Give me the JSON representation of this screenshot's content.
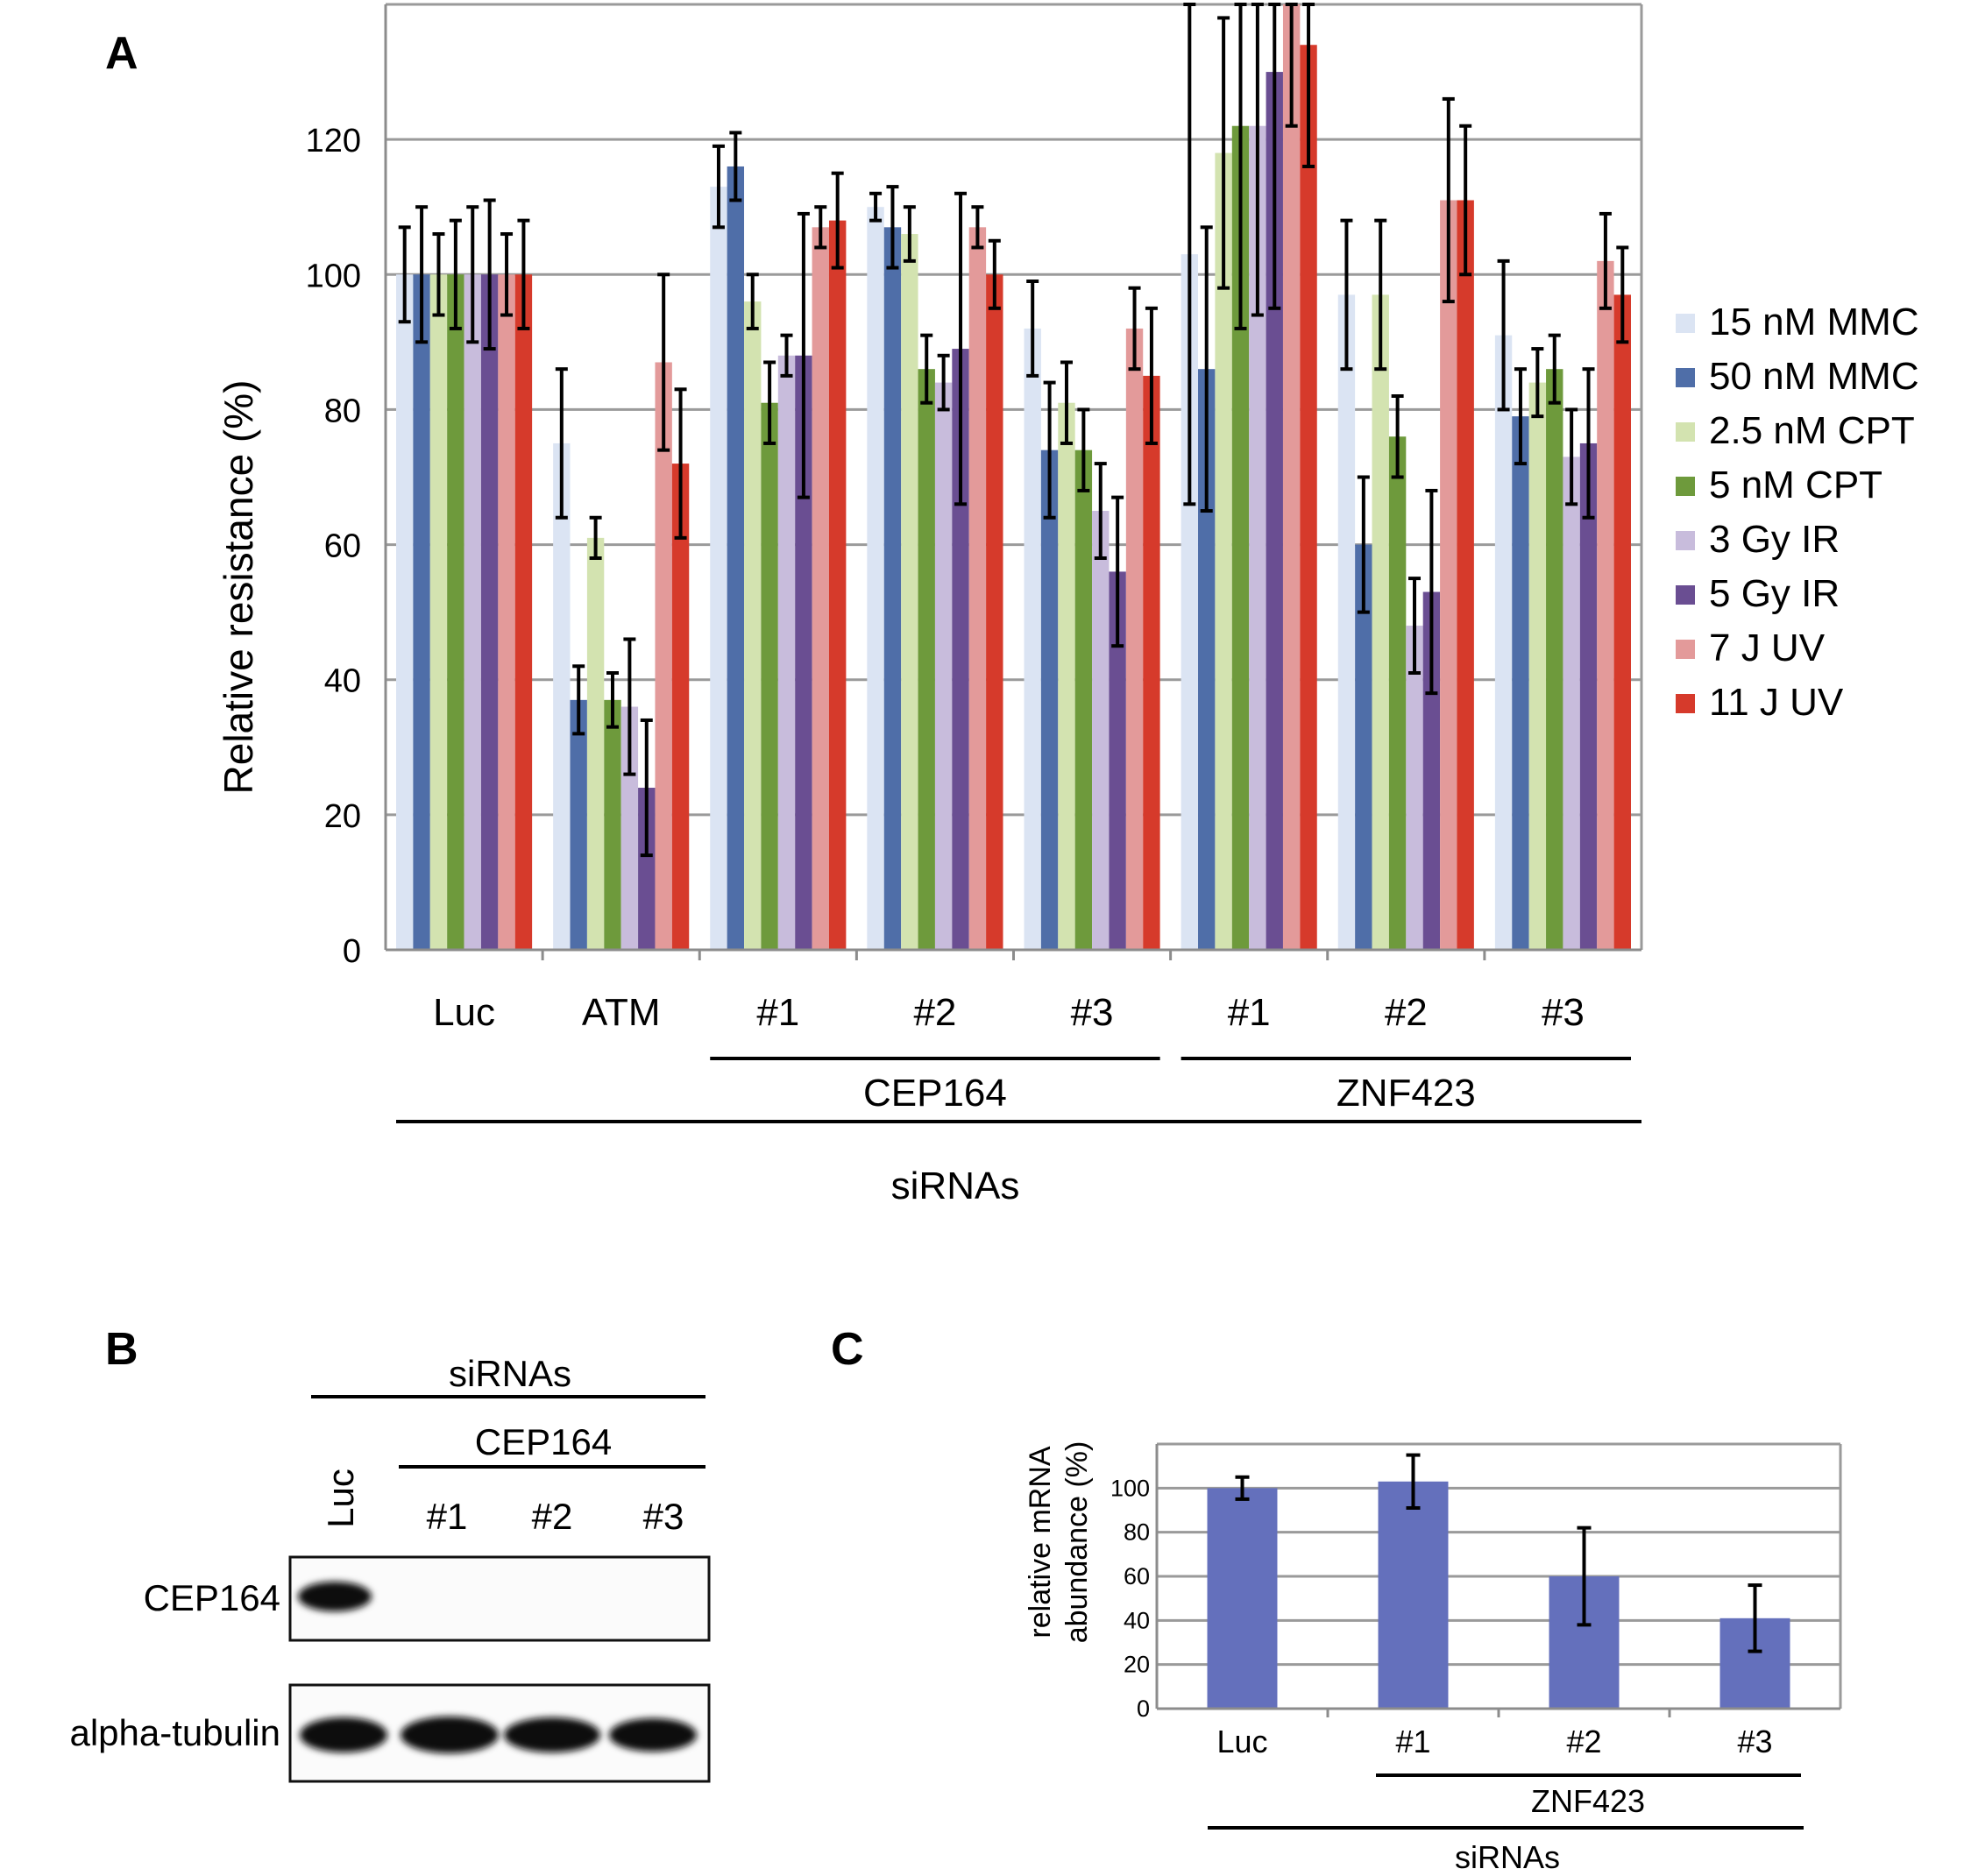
{
  "panels": {
    "a": "A",
    "b": "B",
    "c": "C"
  },
  "chart_data": [
    {
      "type": "bar",
      "panel": "A",
      "ylabel": "Relative resistance (%)",
      "xlabel": "siRNAs",
      "ylim": [
        0,
        140
      ],
      "yticks": [
        0,
        20,
        40,
        60,
        80,
        100,
        120
      ],
      "grid": true,
      "legend_position": "right",
      "categories": [
        "Luc",
        "ATM",
        "#1",
        "#2",
        "#3",
        "#1",
        "#2",
        "#3"
      ],
      "groups": [
        {
          "label": "CEP164",
          "from": 2,
          "to": 4
        },
        {
          "label": "ZNF423",
          "from": 5,
          "to": 7
        }
      ],
      "series": [
        {
          "name": "15 nM MMC",
          "color": "#dbe4f3",
          "values": [
            100,
            75,
            113,
            110,
            92,
            103,
            97,
            91
          ],
          "errors": [
            7,
            11,
            6,
            2,
            7,
            37,
            11,
            11
          ]
        },
        {
          "name": "50 nM MMC",
          "color": "#4f6ea8",
          "values": [
            100,
            37,
            116,
            107,
            74,
            86,
            60,
            79
          ],
          "errors": [
            10,
            5,
            5,
            6,
            10,
            21,
            10,
            7
          ]
        },
        {
          "name": "2.5 nM CPT",
          "color": "#d3e3b0",
          "values": [
            100,
            61,
            96,
            106,
            81,
            118,
            97,
            84
          ],
          "errors": [
            6,
            3,
            4,
            4,
            6,
            20,
            11,
            5
          ]
        },
        {
          "name": "5 nM CPT",
          "color": "#6e9a3c",
          "values": [
            100,
            37,
            81,
            86,
            74,
            122,
            76,
            86
          ],
          "errors": [
            8,
            4,
            6,
            5,
            6,
            30,
            6,
            5
          ]
        },
        {
          "name": "3 Gy IR",
          "color": "#c8bcdc",
          "values": [
            100,
            36,
            88,
            84,
            65,
            122,
            48,
            73
          ],
          "errors": [
            10,
            10,
            3,
            4,
            7,
            28,
            7,
            7
          ]
        },
        {
          "name": "5 Gy IR",
          "color": "#6a4e92",
          "values": [
            100,
            24,
            88,
            89,
            56,
            130,
            53,
            75
          ],
          "errors": [
            11,
            10,
            21,
            23,
            11,
            35,
            15,
            11
          ]
        },
        {
          "name": "7 J UV",
          "color": "#e39a9a",
          "values": [
            100,
            87,
            107,
            107,
            92,
            142,
            111,
            102
          ],
          "errors": [
            6,
            13,
            3,
            3,
            6,
            20,
            15,
            7
          ]
        },
        {
          "name": "11 J UV",
          "color": "#d63a2b",
          "values": [
            100,
            72,
            108,
            100,
            85,
            134,
            111,
            97
          ],
          "errors": [
            8,
            11,
            7,
            5,
            10,
            18,
            11,
            7
          ]
        }
      ]
    },
    {
      "type": "bar",
      "panel": "C",
      "ylabel_lines": [
        "relative mRNA",
        "abundance (%)"
      ],
      "xlabel": "siRNAs",
      "ylim": [
        0,
        120
      ],
      "yticks": [
        0,
        20,
        40,
        60,
        80,
        100
      ],
      "grid": true,
      "categories": [
        "Luc",
        "#1",
        "#2",
        "#3"
      ],
      "group": {
        "label": "ZNF423",
        "from": 1,
        "to": 3
      },
      "series": [
        {
          "color": "#6470bc",
          "values": [
            100,
            103,
            60,
            41
          ],
          "errors": [
            5,
            12,
            22,
            15
          ]
        }
      ]
    }
  ],
  "western_blot": {
    "header": "siRNAs",
    "subheader": "CEP164",
    "lanes": [
      "Luc",
      "#1",
      "#2",
      "#3"
    ],
    "rows": [
      {
        "label": "CEP164",
        "band_intensity": [
          1,
          0,
          0,
          0
        ]
      },
      {
        "label": "alpha-tubulin",
        "band_intensity": [
          1,
          1,
          1,
          1
        ]
      }
    ]
  }
}
